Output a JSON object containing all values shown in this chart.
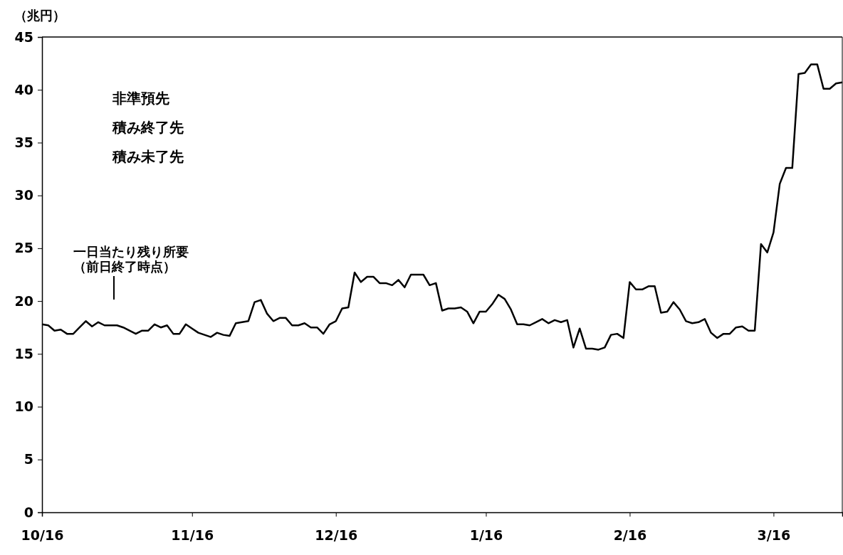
{
  "chart_data": {
    "type": "line",
    "ylabel": "（兆円）",
    "categories": [
      "10/16",
      null,
      null,
      null,
      null,
      null,
      null,
      null,
      null,
      null,
      null,
      null,
      null,
      null,
      null,
      null,
      null,
      null,
      null,
      null,
      null,
      null,
      null,
      null,
      "11/16",
      null,
      null,
      null,
      null,
      null,
      null,
      null,
      null,
      null,
      null,
      null,
      null,
      null,
      null,
      null,
      null,
      null,
      null,
      null,
      null,
      null,
      null,
      "12/16",
      null,
      null,
      null,
      null,
      null,
      null,
      null,
      null,
      null,
      null,
      null,
      null,
      null,
      null,
      null,
      null,
      null,
      null,
      null,
      null,
      null,
      null,
      null,
      "1/16",
      null,
      null,
      null,
      null,
      null,
      null,
      null,
      null,
      null,
      null,
      null,
      null,
      null,
      null,
      null,
      null,
      null,
      null,
      null,
      null,
      null,
      null,
      "2/16",
      null,
      null,
      null,
      null,
      null,
      null,
      null,
      null,
      null,
      null,
      null,
      null,
      null,
      null,
      null,
      null,
      null,
      null,
      null,
      null,
      null,
      null,
      "3/16",
      null,
      null,
      null,
      null,
      null,
      null,
      null,
      null,
      null,
      null,
      null
    ],
    "series": [
      {
        "color": "#000000",
        "values": [
          17.8,
          17.7,
          17.2,
          17.3,
          16.9,
          16.9,
          17.5,
          18.1,
          17.6,
          18.0,
          17.7,
          17.7,
          17.7,
          17.5,
          17.2,
          16.9,
          17.2,
          17.2,
          17.8,
          17.5,
          17.7,
          16.9,
          16.9,
          17.8,
          17.4,
          17.0,
          16.8,
          16.6,
          17.0,
          16.8,
          16.7,
          17.9,
          18.0,
          18.1,
          19.9,
          20.1,
          18.8,
          18.1,
          18.4,
          18.4,
          17.7,
          17.7,
          17.9,
          17.5,
          17.5,
          16.9,
          17.8,
          18.1,
          19.3,
          19.4,
          22.7,
          21.8,
          22.3,
          22.3,
          21.7,
          21.7,
          21.5,
          22.0,
          21.3,
          22.5,
          22.5,
          22.5,
          21.5,
          21.7,
          19.1,
          19.3,
          19.3,
          19.4,
          19.0,
          17.9,
          19.0,
          19.0,
          19.7,
          20.6,
          20.2,
          19.2,
          17.8,
          17.8,
          17.7,
          18.0,
          18.3,
          17.9,
          18.2,
          18.0,
          18.2,
          15.6,
          17.4,
          15.5,
          15.5,
          15.4,
          15.6,
          16.8,
          16.9,
          16.5,
          21.8,
          21.1,
          21.1,
          21.4,
          21.4,
          18.9,
          19.0,
          19.9,
          19.2,
          18.1,
          17.9,
          18.0,
          18.3,
          17.0,
          16.5,
          16.9,
          16.9,
          17.5,
          17.6,
          17.2,
          17.2,
          25.4,
          24.6,
          26.5,
          31.1,
          32.6,
          32.6,
          41.5,
          41.6,
          42.4,
          42.4,
          40.1,
          40.1,
          40.6,
          40.7
        ]
      }
    ],
    "ylim": [
      0,
      45
    ],
    "yticks": [
      0,
      5,
      10,
      15,
      20,
      25,
      30,
      35,
      40,
      45
    ],
    "grid": false,
    "line_style": "solid",
    "marker": "none",
    "annotations": [
      "一日当たり残り所要（前日終了時点）",
      "非準預先",
      "積み終了先",
      "積み未了先"
    ]
  }
}
